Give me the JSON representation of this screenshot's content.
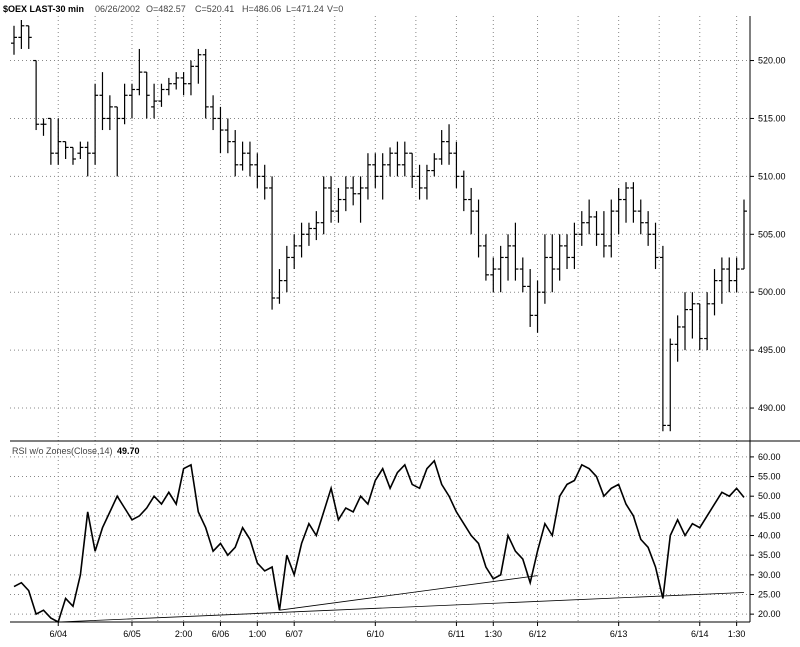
{
  "header": {
    "symbol": "$OEX LAST-30 min",
    "date": "06/26/2002",
    "open": "O=482.57",
    "high_low": "C=520.41",
    "high": "H=486.06",
    "low": "L=471.24",
    "volume": "V=0"
  },
  "chart_data": [
    {
      "type": "bar",
      "subtype": "ohlc-price",
      "title": "$OEX LAST-30 min",
      "ylim": [
        487.5,
        523.5
      ],
      "y_ticks": [
        490,
        495,
        500,
        505,
        510,
        515,
        520
      ],
      "y_tick_labels": [
        "490.00",
        "495.00",
        "500.00",
        "505.00",
        "510.00",
        "515.00",
        "520.00"
      ],
      "grid": true,
      "ohlc": [
        [
          521.5,
          523,
          520.5,
          522
        ],
        [
          522,
          523.5,
          521,
          523
        ],
        [
          523,
          523,
          521,
          522
        ],
        [
          520,
          520,
          514,
          514.5
        ],
        [
          514.5,
          515,
          513.5,
          514.5
        ],
        [
          515,
          515,
          511,
          512
        ],
        [
          512,
          515,
          511,
          513
        ],
        [
          513,
          513,
          511.5,
          512.5
        ],
        [
          512.5,
          512.5,
          511,
          511.5
        ],
        [
          512,
          513,
          511.5,
          512.5
        ],
        [
          512.5,
          513,
          510,
          512
        ],
        [
          512,
          518,
          511,
          517
        ],
        [
          517,
          519,
          514,
          515
        ],
        [
          515,
          517,
          514,
          516
        ],
        [
          516,
          516,
          510,
          515
        ],
        [
          515,
          518,
          514.5,
          517
        ],
        [
          517,
          518,
          515,
          517.5
        ],
        [
          517.5,
          521,
          517,
          519
        ],
        [
          519,
          519,
          515,
          517
        ],
        [
          516,
          518,
          515,
          516.5
        ],
        [
          516.5,
          518,
          516,
          517.5
        ],
        [
          517.5,
          518.5,
          517,
          518
        ],
        [
          518,
          519,
          517.5,
          518.5
        ],
        [
          518.5,
          519,
          517,
          518
        ],
        [
          518,
          520,
          517,
          519.5
        ],
        [
          519.5,
          521,
          518,
          520.5
        ],
        [
          520.5,
          521,
          515,
          516
        ],
        [
          516,
          517,
          514,
          515
        ],
        [
          515,
          516,
          512,
          514
        ],
        [
          514,
          515,
          512,
          513
        ],
        [
          513,
          514,
          510,
          511
        ],
        [
          511,
          513,
          510.5,
          512
        ],
        [
          512,
          513,
          510,
          511
        ],
        [
          511,
          512,
          509,
          510
        ],
        [
          510,
          511,
          508,
          509
        ],
        [
          509,
          510,
          498.5,
          499.5
        ],
        [
          499.5,
          502,
          499,
          501
        ],
        [
          501,
          504,
          500,
          503
        ],
        [
          503,
          505,
          502,
          504
        ],
        [
          504,
          506,
          503,
          505
        ],
        [
          505,
          506,
          504,
          505.5
        ],
        [
          505.5,
          507,
          504.5,
          506
        ],
        [
          506,
          510,
          505,
          509
        ],
        [
          509,
          510,
          506,
          507
        ],
        [
          507,
          509,
          506,
          508
        ],
        [
          508,
          510,
          507,
          509
        ],
        [
          509,
          510,
          507.5,
          508.5
        ],
        [
          508.5,
          510,
          506,
          509
        ],
        [
          509,
          512,
          508,
          511
        ],
        [
          511,
          512,
          509,
          510
        ],
        [
          510,
          512,
          508,
          511
        ],
        [
          511,
          512.5,
          510,
          512
        ],
        [
          512,
          513,
          510,
          511
        ],
        [
          511,
          513,
          510,
          512
        ],
        [
          512,
          512,
          509,
          510
        ],
        [
          510,
          511,
          508,
          509
        ],
        [
          509,
          511,
          508,
          510.5
        ],
        [
          510.5,
          512,
          510,
          511.5
        ],
        [
          511.5,
          514,
          511,
          513
        ],
        [
          513,
          514.5,
          511,
          512
        ],
        [
          512,
          513,
          509,
          510
        ],
        [
          510,
          510.5,
          507,
          508
        ],
        [
          508,
          509,
          505,
          507
        ],
        [
          507,
          508,
          503,
          504
        ],
        [
          504,
          505,
          501,
          501.5
        ],
        [
          501.5,
          503,
          500,
          502
        ],
        [
          502,
          504,
          500,
          503
        ],
        [
          503,
          505,
          501,
          504
        ],
        [
          504,
          506,
          501,
          502
        ],
        [
          502,
          503,
          500,
          500.5
        ],
        [
          500.5,
          502,
          497,
          498
        ],
        [
          498,
          501,
          496.5,
          500
        ],
        [
          500,
          505,
          499,
          503
        ],
        [
          503,
          505,
          500,
          502
        ],
        [
          502,
          505,
          501,
          504
        ],
        [
          504,
          505,
          502,
          503
        ],
        [
          503,
          506,
          502,
          505
        ],
        [
          505,
          507,
          504,
          506
        ],
        [
          506,
          508,
          505,
          506.5
        ],
        [
          506.5,
          507,
          504,
          505
        ],
        [
          505,
          507,
          503,
          504
        ],
        [
          504,
          508,
          503,
          507
        ],
        [
          507,
          509,
          505,
          508
        ],
        [
          508,
          509.5,
          506,
          509
        ],
        [
          509,
          509.5,
          506,
          507
        ],
        [
          507,
          508,
          505,
          506
        ],
        [
          506,
          507,
          504,
          505
        ],
        [
          505,
          506,
          502,
          503
        ],
        [
          503,
          504,
          488,
          488.5
        ],
        [
          488.5,
          496,
          488,
          495.5
        ],
        [
          495.5,
          498,
          494,
          497
        ],
        [
          497,
          500,
          495,
          498.5
        ],
        [
          498.5,
          500,
          496,
          499
        ],
        [
          499,
          499,
          495,
          496
        ],
        [
          496,
          500,
          495,
          499
        ],
        [
          499,
          502,
          498,
          501
        ],
        [
          501,
          503,
          499,
          502
        ],
        [
          502,
          503,
          500,
          501
        ],
        [
          501,
          503,
          500,
          502
        ],
        [
          502,
          508,
          502,
          507
        ]
      ]
    },
    {
      "type": "line",
      "subtype": "rsi",
      "title": "RSI w/o Zones(Close,14)",
      "last_value": "49.70",
      "ylim": [
        18,
        61.5
      ],
      "y_ticks": [
        20,
        25,
        30,
        35,
        40,
        45,
        50,
        55,
        60
      ],
      "y_tick_labels": [
        "20.00",
        "25.00",
        "30.00",
        "35.00",
        "40.00",
        "45.00",
        "50.00",
        "55.00",
        "60.00"
      ],
      "x_ticks": [
        {
          "label": "6/04",
          "index": 6
        },
        {
          "label": "6/05",
          "index": 16
        },
        {
          "label": "2:00",
          "index": 23
        },
        {
          "label": "6/06",
          "index": 28
        },
        {
          "label": "1:00",
          "index": 33
        },
        {
          "label": "6/07",
          "index": 38
        },
        {
          "label": "6/10",
          "index": 49
        },
        {
          "label": "6/11",
          "index": 60
        },
        {
          "label": "1:30",
          "index": 65
        },
        {
          "label": "6/12",
          "index": 71
        },
        {
          "label": "6/13",
          "index": 82
        },
        {
          "label": "6/14",
          "index": 93
        },
        {
          "label": "1:30",
          "index": 98
        }
      ],
      "values": [
        27,
        28,
        26,
        20,
        21,
        19,
        18,
        24,
        22,
        30,
        46,
        36,
        42,
        46,
        50,
        47,
        44,
        45,
        47,
        50,
        48,
        51,
        48,
        57,
        58,
        46,
        42,
        36,
        38,
        35,
        37,
        42,
        39,
        33,
        31,
        32,
        21,
        35,
        30,
        38,
        43,
        40,
        46,
        52,
        44,
        47,
        46,
        50,
        48,
        54,
        57,
        52,
        56,
        58,
        53,
        52,
        57,
        59,
        53,
        50,
        46,
        43,
        40,
        38,
        32,
        29,
        30,
        40,
        36,
        34,
        28,
        36,
        43,
        40,
        50,
        53,
        54,
        58,
        57,
        55,
        50,
        52,
        53,
        48,
        45,
        39,
        37,
        32,
        24,
        40,
        44,
        40,
        43,
        42,
        45,
        48,
        51,
        50,
        52,
        49.7
      ],
      "trendlines": [
        {
          "from": [
            6,
            18
          ],
          "to": [
            99,
            25.5
          ]
        },
        {
          "from": [
            36,
            21
          ],
          "to": [
            71,
            29.8
          ]
        }
      ]
    }
  ]
}
